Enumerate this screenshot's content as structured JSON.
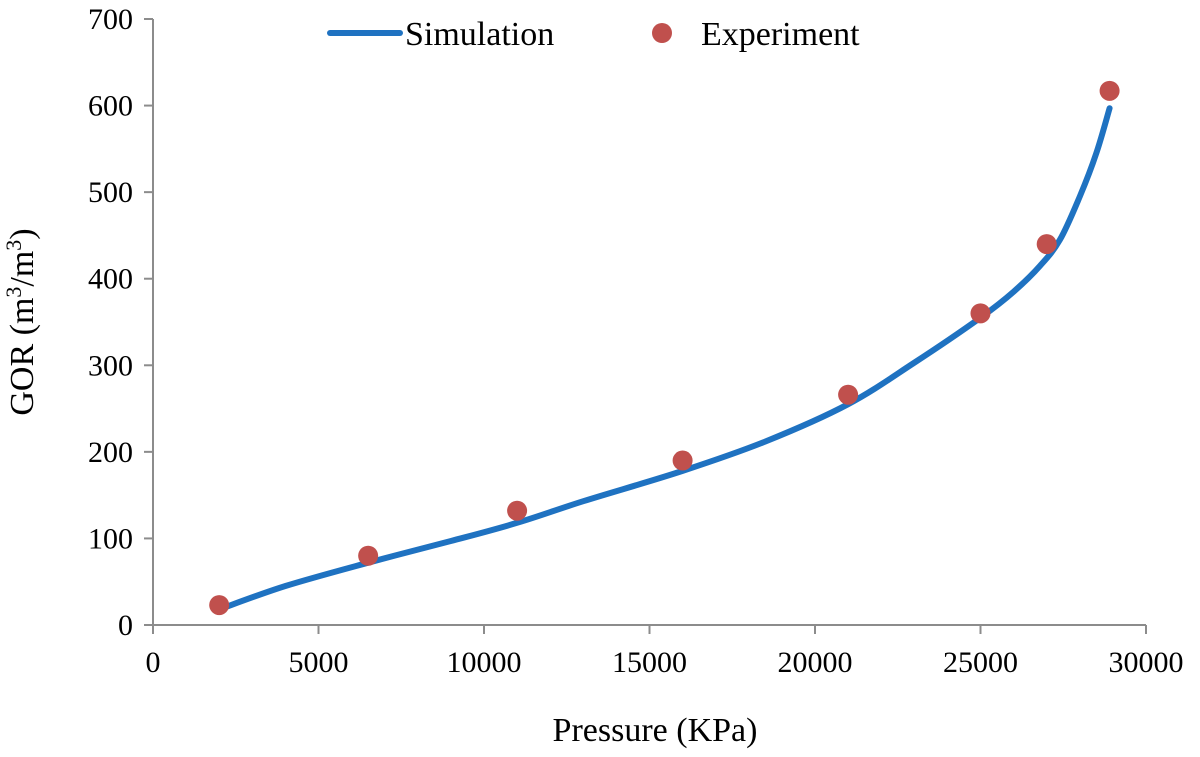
{
  "chart_data": {
    "type": "scatter",
    "title": "",
    "xlabel": "Pressure (KPa)",
    "ylabel": {
      "prefix": "GOR (m",
      "sup1": "3",
      "middle": "/m",
      "sup2": "3",
      "suffix": ")"
    },
    "xlim": [
      0,
      30000
    ],
    "ylim": [
      0,
      700
    ],
    "x_ticks": [
      0,
      5000,
      10000,
      15000,
      20000,
      25000,
      30000
    ],
    "y_ticks": [
      0,
      100,
      200,
      300,
      400,
      500,
      600,
      700
    ],
    "grid": false,
    "legend_position": "top",
    "series": [
      {
        "name": "Simulation",
        "kind": "line",
        "color": "#1f72c1",
        "x": [
          2000,
          4000,
          6500,
          9000,
          11000,
          13000,
          16000,
          18500,
          21000,
          23000,
          25000,
          26000,
          26800,
          27400,
          28000,
          28500,
          28900
        ],
        "y": [
          18,
          45,
          72,
          97,
          118,
          143,
          178,
          212,
          255,
          303,
          355,
          385,
          415,
          445,
          495,
          545,
          597
        ]
      },
      {
        "name": "Experiment",
        "kind": "scatter",
        "color": "#c0504d",
        "x": [
          2000,
          6500,
          11000,
          16000,
          21000,
          25000,
          27000,
          28900
        ],
        "y": [
          23,
          80,
          132,
          190,
          266,
          360,
          440,
          617
        ]
      }
    ]
  }
}
